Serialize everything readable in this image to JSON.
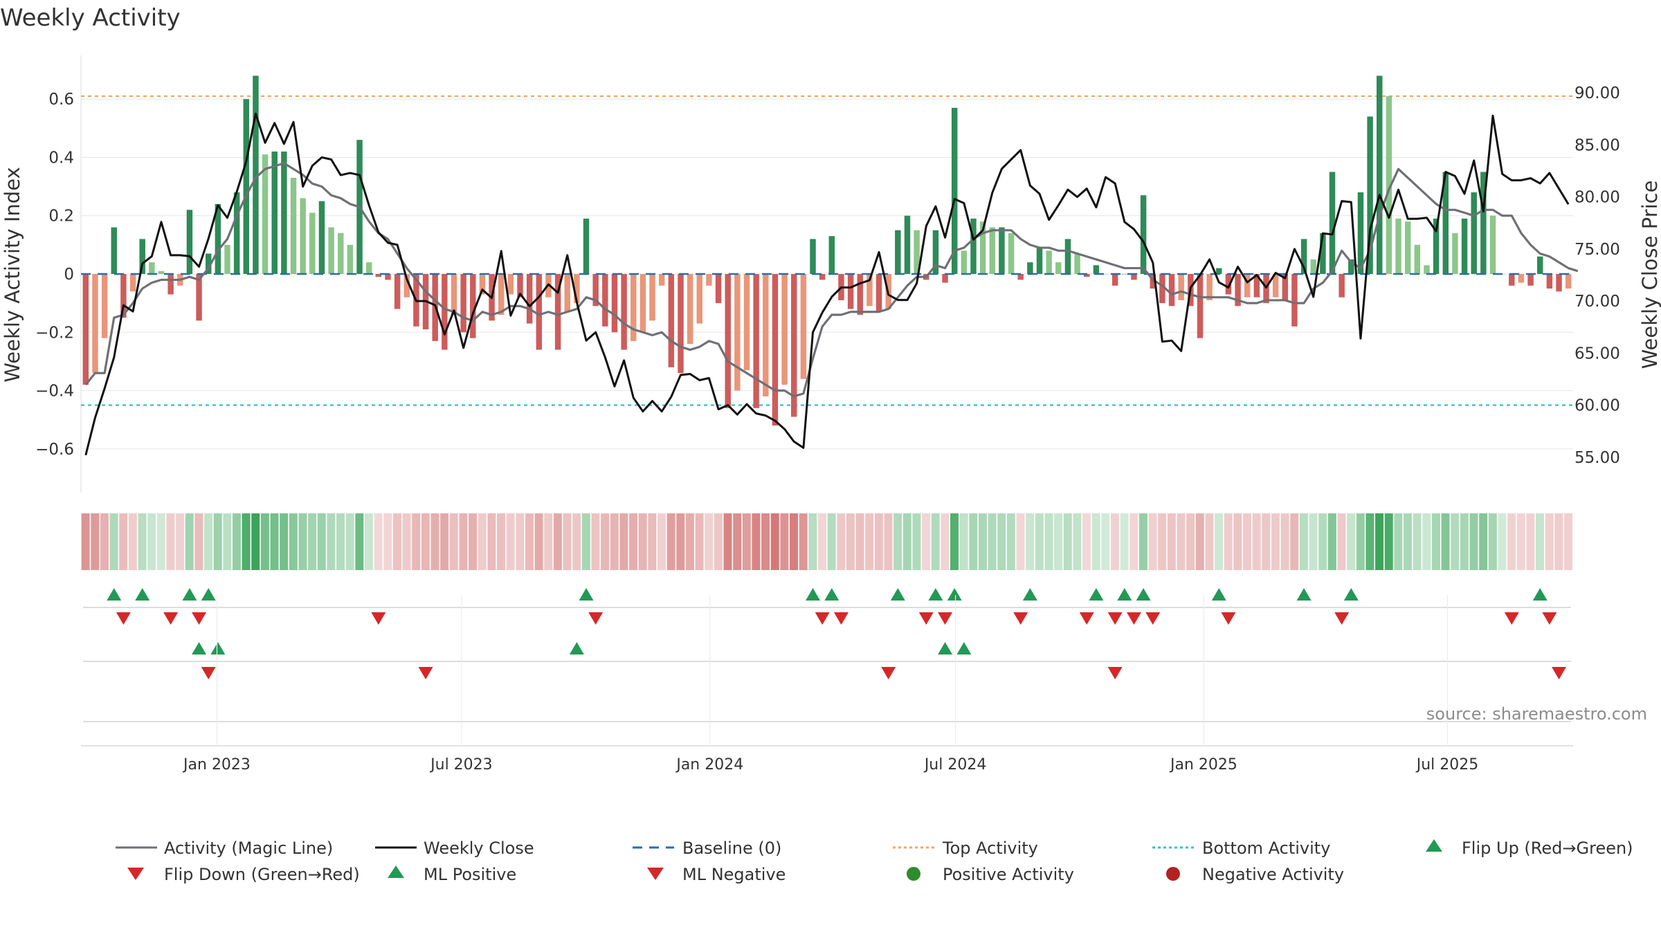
{
  "chart_data": {
    "type": "bar",
    "title": "Weekly Activity",
    "ylabel": "Weekly Activity Index",
    "y2label": "Weekly Close Price",
    "source": "source: sharemaestro.com",
    "ylim": [
      -0.75,
      0.75
    ],
    "y2lim": [
      51.6,
      93.6
    ],
    "yticks": [
      -0.6,
      -0.4,
      -0.2,
      0,
      0.2,
      0.4,
      0.6
    ],
    "yticklabels": [
      "−0.6",
      "−0.4",
      "−0.2",
      "0",
      "0.2",
      "0.4",
      "0.6"
    ],
    "y2ticks": [
      55,
      60,
      65,
      70,
      75,
      80,
      85,
      90
    ],
    "y2ticklabels": [
      "55.00",
      "60.00",
      "65.00",
      "70.00",
      "75.00",
      "80.00",
      "85.00",
      "90.00"
    ],
    "top_activity": 0.61,
    "bottom_activity": -0.45,
    "baseline": 0,
    "x_start": "2022-09-26",
    "week_count": 157,
    "date_ticks": [
      {
        "label": "Jan 2023",
        "week": 14.4
      },
      {
        "label": "Jul 2023",
        "week": 40.3
      },
      {
        "label": "Jan 2024",
        "week": 66.6
      },
      {
        "label": "Jul 2024",
        "week": 92.6
      },
      {
        "label": "Jan 2025",
        "week": 118.9
      },
      {
        "label": "Jul 2025",
        "week": 144.7
      }
    ],
    "series": [
      {
        "name": "Weekly Activity Index",
        "values": [
          -0.38,
          -0.34,
          -0.22,
          0.16,
          -0.15,
          -0.06,
          0.12,
          0.04,
          0.01,
          -0.07,
          -0.04,
          0.22,
          -0.16,
          0.07,
          0.24,
          0.1,
          0.28,
          0.6,
          0.68,
          0.41,
          0.42,
          0.42,
          0.33,
          0.26,
          0.21,
          0.25,
          0.16,
          0.14,
          0.1,
          0.46,
          0.04,
          -0.01,
          -0.02,
          -0.12,
          -0.08,
          -0.18,
          -0.19,
          -0.23,
          -0.26,
          -0.14,
          -0.2,
          -0.22,
          -0.07,
          -0.16,
          -0.14,
          -0.07,
          -0.08,
          -0.17,
          -0.26,
          -0.08,
          -0.26,
          -0.13,
          -0.1,
          0.19,
          -0.11,
          -0.18,
          -0.2,
          -0.26,
          -0.23,
          -0.2,
          -0.16,
          -0.04,
          -0.32,
          -0.34,
          -0.24,
          -0.17,
          -0.04,
          -0.1,
          -0.46,
          -0.4,
          -0.33,
          -0.46,
          -0.42,
          -0.52,
          -0.38,
          -0.49,
          -0.36,
          0.12,
          -0.02,
          0.13,
          -0.09,
          -0.12,
          -0.14,
          -0.11,
          -0.13,
          -0.12,
          0.15,
          0.2,
          0.15,
          -0.02,
          0.15,
          -0.03,
          0.57,
          0.08,
          0.19,
          0.18,
          0.16,
          0.16,
          0.14,
          -0.02,
          0.04,
          0.09,
          0.08,
          0.04,
          0.12,
          0.07,
          -0.01,
          0.03,
          0.0,
          -0.04,
          0.0,
          -0.02,
          0.27,
          -0.05,
          -0.1,
          -0.11,
          -0.09,
          -0.11,
          -0.22,
          -0.09,
          0.02,
          -0.07,
          -0.11,
          -0.08,
          -0.08,
          -0.1,
          -0.08,
          -0.09,
          -0.18,
          0.12,
          0.05,
          0.14,
          0.35,
          -0.08,
          0.05,
          0.28,
          0.54,
          0.68,
          0.61,
          0.19,
          0.18,
          0.1,
          0.03,
          0.19,
          0.35,
          0.14,
          0.19,
          0.28,
          0.35,
          0.2,
          0.0,
          -0.04,
          -0.03,
          -0.04,
          0.06,
          -0.05,
          -0.06,
          -0.05
        ]
      },
      {
        "name": "Activity (Magic Line)",
        "values": [
          -0.38,
          -0.34,
          -0.34,
          -0.15,
          -0.14,
          -0.1,
          -0.05,
          -0.03,
          -0.02,
          -0.02,
          -0.02,
          -0.01,
          -0.02,
          0.02,
          0.08,
          0.12,
          0.2,
          0.27,
          0.33,
          0.36,
          0.37,
          0.38,
          0.36,
          0.34,
          0.31,
          0.3,
          0.27,
          0.26,
          0.24,
          0.23,
          0.18,
          0.14,
          0.12,
          0.07,
          0.02,
          -0.02,
          -0.06,
          -0.09,
          -0.12,
          -0.13,
          -0.15,
          -0.16,
          -0.13,
          -0.14,
          -0.13,
          -0.11,
          -0.11,
          -0.12,
          -0.14,
          -0.13,
          -0.14,
          -0.13,
          -0.12,
          -0.08,
          -0.09,
          -0.12,
          -0.14,
          -0.17,
          -0.19,
          -0.2,
          -0.21,
          -0.2,
          -0.23,
          -0.25,
          -0.26,
          -0.25,
          -0.23,
          -0.24,
          -0.3,
          -0.32,
          -0.34,
          -0.36,
          -0.38,
          -0.4,
          -0.4,
          -0.42,
          -0.41,
          -0.29,
          -0.18,
          -0.14,
          -0.14,
          -0.13,
          -0.13,
          -0.13,
          -0.13,
          -0.12,
          -0.08,
          -0.04,
          -0.01,
          -0.01,
          0.03,
          0.02,
          0.08,
          0.09,
          0.12,
          0.14,
          0.15,
          0.15,
          0.15,
          0.12,
          0.1,
          0.09,
          0.09,
          0.08,
          0.08,
          0.07,
          0.06,
          0.05,
          0.04,
          0.03,
          0.02,
          0.02,
          0.02,
          -0.02,
          -0.04,
          -0.07,
          -0.06,
          -0.07,
          -0.08,
          -0.08,
          -0.08,
          -0.08,
          -0.09,
          -0.1,
          -0.1,
          -0.09,
          -0.09,
          -0.09,
          -0.1,
          -0.1,
          -0.05,
          -0.03,
          0.01,
          0.08,
          0.04,
          0.02,
          0.08,
          0.2,
          0.29,
          0.36,
          0.33,
          0.3,
          0.27,
          0.24,
          0.22,
          0.22,
          0.21,
          0.2,
          0.22,
          0.22,
          0.2,
          0.2,
          0.14,
          0.1,
          0.07,
          0.06,
          0.04,
          0.02,
          0.01
        ]
      },
      {
        "name": "Weekly Close",
        "values": [
          55.2,
          58.8,
          61.6,
          64.6,
          69.6,
          69.0,
          73.6,
          74.3,
          77.6,
          74.4,
          74.4,
          74.3,
          73.3,
          76.0,
          79.2,
          78.0,
          80.5,
          83.4,
          88.0,
          85.2,
          87.1,
          85.1,
          87.2,
          81.0,
          83.0,
          83.8,
          83.6,
          82.1,
          82.3,
          82.1,
          79.2,
          76.6,
          75.6,
          75.4,
          72.1,
          70.0,
          70.0,
          69.6,
          66.8,
          69.1,
          65.5,
          68.8,
          71.1,
          70.3,
          74.8,
          68.6,
          70.7,
          69.5,
          70.4,
          71.6,
          70.8,
          74.4,
          69.9,
          66.2,
          67.0,
          64.6,
          61.8,
          64.3,
          60.7,
          59.4,
          60.4,
          59.4,
          60.8,
          62.9,
          63.0,
          62.4,
          62.6,
          59.6,
          60.0,
          59.1,
          60.1,
          59.2,
          59.0,
          58.5,
          57.7,
          56.5,
          55.9,
          67.0,
          68.9,
          70.4,
          71.3,
          71.3,
          71.7,
          72.0,
          74.7,
          70.6,
          70.1,
          70.1,
          71.7,
          77.2,
          79.1,
          76.1,
          79.8,
          79.4,
          75.9,
          76.8,
          80.4,
          82.7,
          83.6,
          84.5,
          81.1,
          80.3,
          77.8,
          79.2,
          80.7,
          80.0,
          80.8,
          79.0,
          81.9,
          81.3,
          77.6,
          76.9,
          75.7,
          73.7,
          66.1,
          66.2,
          65.2,
          71.3,
          72.5,
          74.0,
          71.8,
          71.3,
          73.3,
          71.8,
          72.5,
          71.3,
          72.7,
          72.2,
          75.0,
          73.2,
          70.4,
          76.5,
          76.4,
          79.6,
          79.5,
          66.4,
          76.8,
          80.2,
          78.0,
          80.7,
          77.9,
          77.9,
          78.0,
          76.7,
          82.4,
          82.0,
          80.3,
          83.5,
          78.6,
          87.8,
          82.2,
          81.6,
          81.6,
          81.8,
          81.3,
          82.3,
          80.8,
          79.3
        ]
      }
    ],
    "ml_positive_weeks": [
      12,
      14,
      52,
      91,
      93
    ],
    "ml_negative_weeks": [
      13,
      36,
      85,
      109,
      156
    ],
    "legend": {
      "activity_magic_line": "Activity (Magic Line)",
      "weekly_close": "Weekly Close",
      "baseline": "Baseline (0)",
      "top_activity": "Top Activity",
      "bottom_activity": "Bottom Activity",
      "flip_up": "Flip Up (Red→Green)",
      "flip_down": "Flip Down (Green→Red)",
      "ml_positive": "ML Positive",
      "ml_negative": "ML Negative",
      "positive_activity": "Positive Activity",
      "negative_activity": "Negative Activity"
    },
    "legend_placement": "bottom",
    "colors": {
      "positive_strong": "#2e8b57",
      "positive_light": "#8cc68a",
      "negative_strong": "#cd5c5c",
      "negative_light": "#e9967a",
      "magic_line": "#6e7075",
      "close_line": "#111111",
      "baseline": "#1f6fb4",
      "top_line": "#f4a460",
      "bottom_line": "#2ec4c4",
      "flip_up": "#229954",
      "flip_down": "#d62728",
      "positive_dot": "#2e8b2e",
      "negative_dot": "#b22222",
      "grid": "#e6e6e6"
    }
  }
}
